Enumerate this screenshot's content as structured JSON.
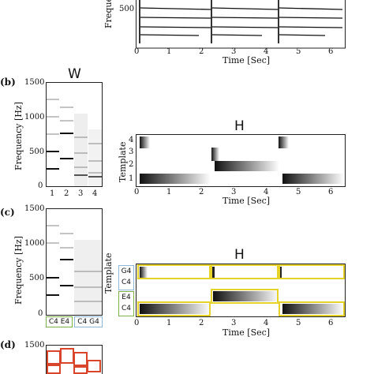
{
  "top_panel": {
    "ylabel": "Freque",
    "yticks": [
      "500"
    ],
    "xticks": [
      "0",
      "1",
      "2",
      "3",
      "4",
      "5",
      "6"
    ],
    "xlabel": "Time [Sec]"
  },
  "panel_b": {
    "letter": "(b)",
    "w_title": "W",
    "w_ylabel": "Frequency [Hz]",
    "w_yticks": [
      "1500",
      "1000",
      "500",
      "0"
    ],
    "w_xticks": [
      "1",
      "2",
      "3",
      "4"
    ],
    "h_title": "H",
    "h_ylabel": "Template",
    "h_yticks": [
      "4",
      "3",
      "2",
      "1"
    ],
    "h_xticks": [
      "0",
      "1",
      "2",
      "3",
      "4",
      "5",
      "6"
    ],
    "h_xlabel": "Time [Sec]"
  },
  "panel_c": {
    "letter": "(c)",
    "w_ylabel": "Frequency [Hz]",
    "w_yticks": [
      "1500",
      "1000",
      "500",
      "0"
    ],
    "w_tags": [
      "C4",
      "E4",
      "C4",
      "G4"
    ],
    "h_title": "H",
    "h_ylabel": "Template",
    "h_ytags": [
      "G4",
      "C4",
      "E4",
      "C4"
    ],
    "h_xticks": [
      "0",
      "1",
      "2",
      "3",
      "4",
      "5",
      "6"
    ],
    "h_xlabel": "Time [Sec]"
  },
  "panel_d": {
    "letter": "(d)",
    "w_yticks": [
      "1500"
    ]
  },
  "colors": {
    "green": "#7fb24a",
    "blue": "#8fb8d8",
    "yellow": "#e6d32a",
    "red": "#d9452b"
  }
}
